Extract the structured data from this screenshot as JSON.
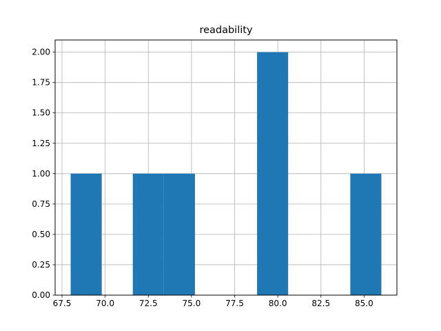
{
  "chart_data": {
    "type": "bar",
    "subtype": "histogram",
    "title": "readability",
    "xlabel": "",
    "ylabel": "",
    "bins": [
      {
        "x0": 68.0,
        "x1": 69.8,
        "count": 1
      },
      {
        "x0": 69.8,
        "x1": 71.6,
        "count": 0
      },
      {
        "x0": 71.6,
        "x1": 73.4,
        "count": 1
      },
      {
        "x0": 73.4,
        "x1": 75.2,
        "count": 1
      },
      {
        "x0": 75.2,
        "x1": 77.0,
        "count": 0
      },
      {
        "x0": 77.0,
        "x1": 78.8,
        "count": 0
      },
      {
        "x0": 78.8,
        "x1": 80.6,
        "count": 2
      },
      {
        "x0": 80.6,
        "x1": 82.4,
        "count": 0
      },
      {
        "x0": 82.4,
        "x1": 84.2,
        "count": 0
      },
      {
        "x0": 84.2,
        "x1": 86.0,
        "count": 1
      }
    ],
    "xlim": [
      67.1,
      86.9
    ],
    "ylim": [
      0,
      2.1
    ],
    "xticks": [
      "67.5",
      "70.0",
      "72.5",
      "75.0",
      "77.5",
      "80.0",
      "82.5",
      "85.0"
    ],
    "xtick_values": [
      67.5,
      70.0,
      72.5,
      75.0,
      77.5,
      80.0,
      82.5,
      85.0
    ],
    "yticks": [
      "0.00",
      "0.25",
      "0.50",
      "0.75",
      "1.00",
      "1.25",
      "1.50",
      "1.75",
      "2.00"
    ],
    "ytick_values": [
      0,
      0.25,
      0.5,
      0.75,
      1.0,
      1.25,
      1.5,
      1.75,
      2.0
    ],
    "grid": true,
    "legend": "none",
    "bar_color": "#1f77b4",
    "grid_color": "#b0b0b0"
  }
}
